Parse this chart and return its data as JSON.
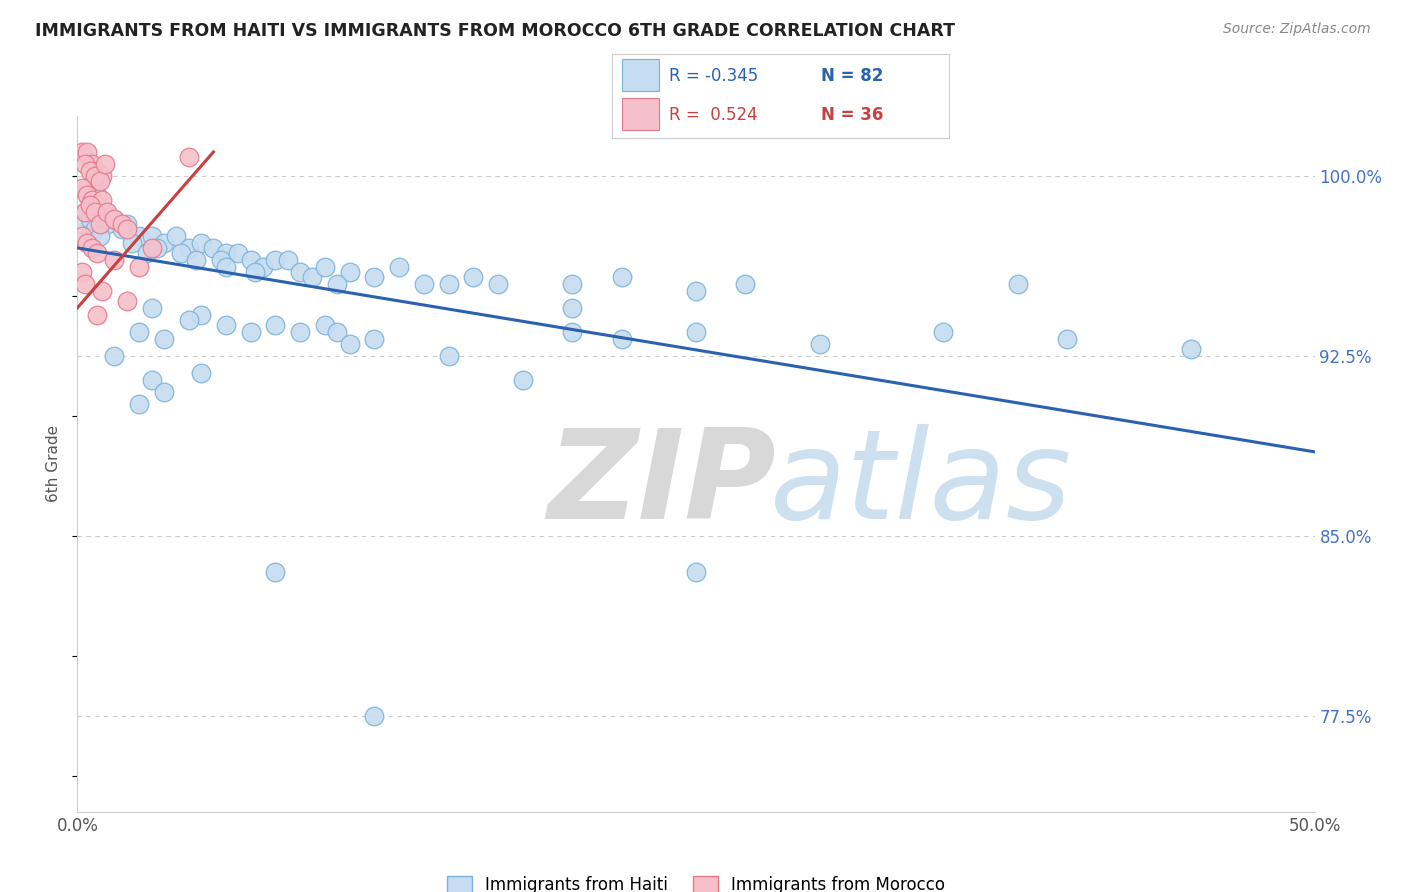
{
  "title": "IMMIGRANTS FROM HAITI VS IMMIGRANTS FROM MOROCCO 6TH GRADE CORRELATION CHART",
  "source": "Source: ZipAtlas.com",
  "ylabel_label": "6th Grade",
  "ylabel_ticks": [
    77.5,
    85.0,
    92.5,
    100.0
  ],
  "xlim": [
    0.0,
    50.0
  ],
  "ylim": [
    73.5,
    102.5
  ],
  "haiti_color": "#c6dcf0",
  "haiti_edge": "#7ab3d9",
  "morocco_color": "#f5c0ca",
  "morocco_edge": "#e8788a",
  "haiti_line_color": "#2b62b0",
  "morocco_line_color": "#c94040",
  "legend_R_haiti": "-0.345",
  "legend_N_haiti": "82",
  "legend_R_morocco": "0.524",
  "legend_N_morocco": "36",
  "haiti_trendline": [
    [
      0,
      97.0
    ],
    [
      50,
      88.5
    ]
  ],
  "morocco_trendline": [
    [
      0,
      94.5
    ],
    [
      5.5,
      101.0
    ]
  ],
  "haiti_scatter": [
    [
      0.3,
      98.5
    ],
    [
      0.5,
      99.0
    ],
    [
      0.4,
      99.5
    ],
    [
      0.2,
      98.0
    ],
    [
      0.6,
      98.8
    ],
    [
      0.8,
      99.2
    ],
    [
      0.5,
      98.2
    ],
    [
      0.7,
      97.8
    ],
    [
      1.0,
      98.5
    ],
    [
      1.2,
      98.0
    ],
    [
      0.9,
      97.5
    ],
    [
      1.5,
      98.2
    ],
    [
      2.0,
      98.0
    ],
    [
      1.8,
      97.8
    ],
    [
      2.5,
      97.5
    ],
    [
      2.2,
      97.2
    ],
    [
      3.0,
      97.5
    ],
    [
      3.5,
      97.2
    ],
    [
      2.8,
      96.8
    ],
    [
      3.2,
      97.0
    ],
    [
      4.0,
      97.5
    ],
    [
      4.5,
      97.0
    ],
    [
      5.0,
      97.2
    ],
    [
      4.2,
      96.8
    ],
    [
      4.8,
      96.5
    ],
    [
      5.5,
      97.0
    ],
    [
      6.0,
      96.8
    ],
    [
      5.8,
      96.5
    ],
    [
      6.5,
      96.8
    ],
    [
      7.0,
      96.5
    ],
    [
      7.5,
      96.2
    ],
    [
      8.0,
      96.5
    ],
    [
      6.0,
      96.2
    ],
    [
      7.2,
      96.0
    ],
    [
      8.5,
      96.5
    ],
    [
      9.0,
      96.0
    ],
    [
      9.5,
      95.8
    ],
    [
      10.0,
      96.2
    ],
    [
      11.0,
      96.0
    ],
    [
      10.5,
      95.5
    ],
    [
      12.0,
      95.8
    ],
    [
      13.0,
      96.2
    ],
    [
      14.0,
      95.5
    ],
    [
      15.0,
      95.5
    ],
    [
      16.0,
      95.8
    ],
    [
      17.0,
      95.5
    ],
    [
      20.0,
      95.5
    ],
    [
      22.0,
      95.8
    ],
    [
      25.0,
      95.2
    ],
    [
      27.0,
      95.5
    ],
    [
      3.0,
      94.5
    ],
    [
      5.0,
      94.2
    ],
    [
      4.5,
      94.0
    ],
    [
      2.5,
      93.5
    ],
    [
      3.5,
      93.2
    ],
    [
      6.0,
      93.8
    ],
    [
      7.0,
      93.5
    ],
    [
      8.0,
      93.8
    ],
    [
      9.0,
      93.5
    ],
    [
      10.0,
      93.8
    ],
    [
      10.5,
      93.5
    ],
    [
      11.0,
      93.0
    ],
    [
      12.0,
      93.2
    ],
    [
      20.0,
      93.5
    ],
    [
      22.0,
      93.2
    ],
    [
      25.0,
      93.5
    ],
    [
      30.0,
      93.0
    ],
    [
      35.0,
      93.5
    ],
    [
      40.0,
      93.2
    ],
    [
      45.0,
      92.8
    ],
    [
      3.0,
      91.5
    ],
    [
      5.0,
      91.8
    ],
    [
      2.5,
      90.5
    ],
    [
      3.5,
      91.0
    ],
    [
      1.5,
      92.5
    ],
    [
      38.0,
      95.5
    ],
    [
      20.0,
      94.5
    ],
    [
      15.0,
      92.5
    ],
    [
      18.0,
      91.5
    ],
    [
      8.0,
      83.5
    ],
    [
      25.0,
      83.5
    ],
    [
      12.0,
      77.5
    ]
  ],
  "morocco_scatter": [
    [
      0.2,
      101.0
    ],
    [
      0.4,
      101.0
    ],
    [
      0.6,
      100.5
    ],
    [
      0.8,
      100.2
    ],
    [
      1.0,
      100.0
    ],
    [
      0.3,
      100.5
    ],
    [
      0.5,
      100.2
    ],
    [
      0.7,
      100.0
    ],
    [
      0.9,
      99.8
    ],
    [
      1.1,
      100.5
    ],
    [
      0.2,
      99.5
    ],
    [
      0.4,
      99.2
    ],
    [
      0.6,
      99.0
    ],
    [
      0.8,
      98.8
    ],
    [
      1.0,
      99.0
    ],
    [
      0.3,
      98.5
    ],
    [
      0.5,
      98.8
    ],
    [
      0.7,
      98.5
    ],
    [
      0.9,
      98.0
    ],
    [
      1.2,
      98.5
    ],
    [
      1.5,
      98.2
    ],
    [
      1.8,
      98.0
    ],
    [
      2.0,
      97.8
    ],
    [
      0.2,
      97.5
    ],
    [
      0.4,
      97.2
    ],
    [
      0.6,
      97.0
    ],
    [
      0.8,
      96.8
    ],
    [
      1.5,
      96.5
    ],
    [
      2.5,
      96.2
    ],
    [
      3.0,
      97.0
    ],
    [
      4.5,
      100.8
    ],
    [
      0.2,
      96.0
    ],
    [
      0.3,
      95.5
    ],
    [
      1.0,
      95.2
    ],
    [
      2.0,
      94.8
    ],
    [
      0.8,
      94.2
    ]
  ],
  "watermark_zip": "ZIP",
  "watermark_atlas": "atlas",
  "background_color": "#ffffff",
  "grid_color": "#cccccc"
}
